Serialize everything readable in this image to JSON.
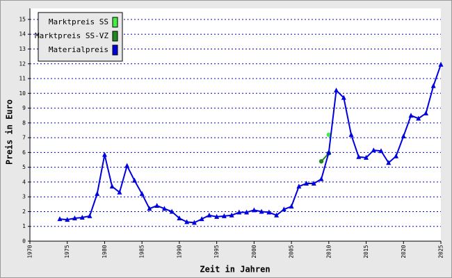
{
  "chart_data": {
    "type": "line",
    "xlabel": "Zeit in Jahren",
    "ylabel": "Preis in Euro",
    "xlim": [
      1970,
      2025
    ],
    "ylim": [
      0,
      15.75
    ],
    "xticks": [
      1970,
      1975,
      1980,
      1985,
      1990,
      1995,
      2000,
      2005,
      2010,
      2015,
      2020,
      2025
    ],
    "yticks": [
      0,
      1,
      2,
      3,
      4,
      5,
      6,
      7,
      8,
      9,
      10,
      11,
      12,
      13,
      14,
      15
    ],
    "grid": true,
    "legend": "upper left",
    "series": [
      {
        "name": "Marktpreis SS",
        "color": "#44ee44",
        "marker": "circle",
        "x": [
          2010
        ],
        "values": [
          7.2
        ]
      },
      {
        "name": "Marktpreis SS-VZ",
        "color": "#228822",
        "marker": "circle",
        "x": [
          2009,
          2010
        ],
        "values": [
          5.4,
          5.95
        ]
      },
      {
        "name": "Materialpreis",
        "color": "#0000dd",
        "marker": "triangle",
        "x": [
          1974,
          1975,
          1976,
          1977,
          1978,
          1979,
          1980,
          1981,
          1982,
          1983,
          1984,
          1985,
          1986,
          1987,
          1988,
          1989,
          1990,
          1991,
          1992,
          1993,
          1994,
          1995,
          1996,
          1997,
          1998,
          1999,
          2000,
          2001,
          2002,
          2003,
          2004,
          2005,
          2006,
          2007,
          2008,
          2009,
          2010,
          2011,
          2012,
          2013,
          2014,
          2015,
          2016,
          2017,
          2018,
          2019,
          2020,
          2021,
          2022,
          2023,
          2024,
          2025
        ],
        "values": [
          1.5,
          1.45,
          1.55,
          1.6,
          1.7,
          3.2,
          5.85,
          3.7,
          3.3,
          5.1,
          4.1,
          3.2,
          2.2,
          2.4,
          2.2,
          2.0,
          1.55,
          1.3,
          1.25,
          1.5,
          1.75,
          1.65,
          1.7,
          1.75,
          1.95,
          1.95,
          2.1,
          2.0,
          1.95,
          1.75,
          2.15,
          2.35,
          3.7,
          3.9,
          3.9,
          4.2,
          6.0,
          10.2,
          9.7,
          7.2,
          5.7,
          5.65,
          6.15,
          6.1,
          5.3,
          5.75,
          7.1,
          8.5,
          8.3,
          8.65,
          10.5,
          11.95
        ]
      }
    ]
  }
}
